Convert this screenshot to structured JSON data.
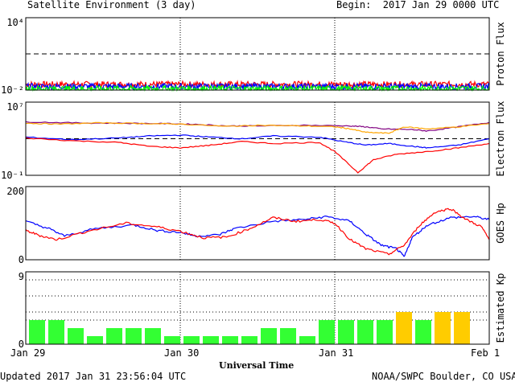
{
  "header": {
    "title": "Satellite Environment (3 day)",
    "begin": "Begin:  2017 Jan 29 0000 UTC"
  },
  "footer": {
    "updated": "Updated 2017 Jan 31 23:56:04 UTC",
    "credit": "NOAA/SWPC Boulder, CO USA"
  },
  "x_axis": {
    "label": "Universal Time",
    "ticks": [
      "Jan 29",
      "Jan 30",
      "Jan 31",
      "Feb 1"
    ]
  },
  "colors": {
    "red": "#ff0000",
    "blue": "#0000ff",
    "green": "#00ff00",
    "orange": "#ffa500",
    "purple": "#800080",
    "kp_green": "#33ff33",
    "kp_yellow": "#ffcc00"
  },
  "chart_data": [
    {
      "type": "line",
      "ylabel": "Proton Flux",
      "scale": "log",
      "ylim": [
        0.01,
        10000
      ],
      "yticks": [
        "10⁴",
        "10⁻²"
      ],
      "threshold": 10,
      "x": "days since Jan 29 0000 UTC, 0–3",
      "series": [
        {
          "color": "red",
          "level": 0.03,
          "noise": 0.25
        },
        {
          "color": "blue",
          "level": 0.02,
          "noise": 0.25
        },
        {
          "color": "green",
          "level": 0.013,
          "noise": 0.25
        }
      ]
    },
    {
      "type": "line",
      "ylabel": "Electron Flux",
      "scale": "log",
      "ylim": [
        0.1,
        10000000
      ],
      "yticks": [
        "10⁷",
        "10⁻¹"
      ],
      "threshold": 1000,
      "series": [
        {
          "color": "purple",
          "points": [
            [
              0,
              70000
            ],
            [
              0.3,
              55000
            ],
            [
              0.6,
              50000
            ],
            [
              0.9,
              45000
            ],
            [
              1.1,
              38000
            ],
            [
              1.3,
              25000
            ],
            [
              1.5,
              25000
            ],
            [
              1.8,
              30000
            ],
            [
              2.1,
              25000
            ],
            [
              2.2,
              20000
            ],
            [
              2.3,
              12000
            ],
            [
              2.5,
              10000
            ],
            [
              2.6,
              7000
            ],
            [
              2.8,
              20000
            ],
            [
              3,
              60000
            ]
          ]
        },
        {
          "color": "orange",
          "points": [
            [
              0,
              50000
            ],
            [
              0.2,
              40000
            ],
            [
              0.5,
              55000
            ],
            [
              0.8,
              45000
            ],
            [
              1.0,
              40000
            ],
            [
              1.3,
              22000
            ],
            [
              1.5,
              30000
            ],
            [
              1.8,
              25000
            ],
            [
              2.0,
              20000
            ],
            [
              2.1,
              12000
            ],
            [
              2.2,
              5000
            ],
            [
              2.35,
              4000
            ],
            [
              2.45,
              20000
            ],
            [
              2.6,
              12000
            ],
            [
              2.8,
              20000
            ],
            [
              3,
              45000
            ]
          ]
        },
        {
          "color": "blue",
          "points": [
            [
              0,
              1500
            ],
            [
              0.3,
              800
            ],
            [
              0.6,
              1200
            ],
            [
              0.8,
              2000
            ],
            [
              1.0,
              2500
            ],
            [
              1.2,
              1500
            ],
            [
              1.4,
              1000
            ],
            [
              1.6,
              2000
            ],
            [
              1.9,
              1500
            ],
            [
              2.05,
              500
            ],
            [
              2.2,
              200
            ],
            [
              2.35,
              300
            ],
            [
              2.5,
              150
            ],
            [
              2.6,
              100
            ],
            [
              2.8,
              200
            ],
            [
              3,
              1000
            ]
          ]
        },
        {
          "color": "red",
          "points": [
            [
              0,
              1200
            ],
            [
              0.3,
              600
            ],
            [
              0.6,
              400
            ],
            [
              0.8,
              150
            ],
            [
              1.0,
              100
            ],
            [
              1.2,
              200
            ],
            [
              1.4,
              500
            ],
            [
              1.6,
              300
            ],
            [
              1.9,
              400
            ],
            [
              2.0,
              40
            ],
            [
              2.15,
              0.2
            ],
            [
              2.25,
              5
            ],
            [
              2.4,
              20
            ],
            [
              2.6,
              40
            ],
            [
              2.8,
              100
            ],
            [
              3,
              300
            ]
          ]
        }
      ]
    },
    {
      "type": "line",
      "ylabel": "GOES Hp",
      "scale": "linear",
      "ylim": [
        0,
        200
      ],
      "yticks": [
        "200",
        "0"
      ],
      "series": [
        {
          "color": "blue",
          "points": [
            [
              0,
              105
            ],
            [
              0.15,
              85
            ],
            [
              0.25,
              65
            ],
            [
              0.45,
              85
            ],
            [
              0.7,
              95
            ],
            [
              0.85,
              80
            ],
            [
              1.0,
              75
            ],
            [
              1.1,
              65
            ],
            [
              1.25,
              68
            ],
            [
              1.35,
              85
            ],
            [
              1.6,
              105
            ],
            [
              1.8,
              110
            ],
            [
              1.95,
              118
            ],
            [
              2.1,
              105
            ],
            [
              2.2,
              70
            ],
            [
              2.3,
              40
            ],
            [
              2.4,
              30
            ],
            [
              2.45,
              8
            ],
            [
              2.5,
              60
            ],
            [
              2.6,
              95
            ],
            [
              2.75,
              115
            ],
            [
              2.9,
              118
            ],
            [
              3,
              110
            ]
          ]
        },
        {
          "color": "red",
          "points": [
            [
              0,
              80
            ],
            [
              0.1,
              65
            ],
            [
              0.2,
              55
            ],
            [
              0.4,
              78
            ],
            [
              0.65,
              100
            ],
            [
              0.85,
              90
            ],
            [
              1.0,
              78
            ],
            [
              1.15,
              60
            ],
            [
              1.3,
              62
            ],
            [
              1.45,
              85
            ],
            [
              1.6,
              115
            ],
            [
              1.75,
              105
            ],
            [
              1.9,
              110
            ],
            [
              2.0,
              100
            ],
            [
              2.1,
              55
            ],
            [
              2.2,
              30
            ],
            [
              2.35,
              15
            ],
            [
              2.45,
              40
            ],
            [
              2.55,
              95
            ],
            [
              2.65,
              130
            ],
            [
              2.75,
              140
            ],
            [
              2.85,
              110
            ],
            [
              2.95,
              90
            ],
            [
              3,
              55
            ]
          ]
        }
      ]
    },
    {
      "type": "bar",
      "ylabel": "Estimated Kp",
      "ylim": [
        0,
        9
      ],
      "yticks": [
        "9",
        "0"
      ],
      "values": [
        3,
        3,
        2,
        1,
        2,
        2,
        2,
        1,
        1,
        1,
        1,
        1,
        2,
        2,
        1,
        3,
        3,
        3,
        3,
        4,
        3,
        4,
        4
      ],
      "bar_colors": [
        "kp_green",
        "kp_green",
        "kp_green",
        "kp_green",
        "kp_green",
        "kp_green",
        "kp_green",
        "kp_green",
        "kp_green",
        "kp_green",
        "kp_green",
        "kp_green",
        "kp_green",
        "kp_green",
        "kp_green",
        "kp_green",
        "kp_green",
        "kp_green",
        "kp_green",
        "kp_yellow",
        "kp_green",
        "kp_yellow",
        "kp_yellow"
      ]
    }
  ]
}
